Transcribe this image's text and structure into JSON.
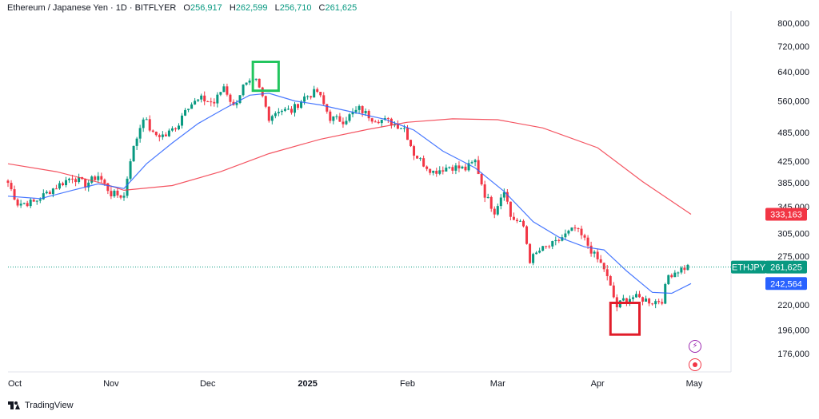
{
  "header": {
    "symbol": "Ethereum / Japanese Yen · 1D · BITFLYER",
    "open_label": "O",
    "open": "256,917",
    "high_label": "H",
    "high": "262,599",
    "low_label": "L",
    "low": "256,710",
    "close_label": "C",
    "close": "261,625"
  },
  "footer": {
    "brand": "TradingView"
  },
  "colors": {
    "up": "#089981",
    "down": "#f23645",
    "ma_fast": "#2962ff",
    "ma_slow": "#f23645",
    "box_high": "#22c55e",
    "box_low": "#e11d2a",
    "last_price": "#089981"
  },
  "icons": {
    "flash": "lightning-icon",
    "record": "target-icon"
  },
  "chart_data": {
    "type": "candlestick",
    "scale": "log",
    "y_ticks": [
      800000,
      720000,
      640000,
      560000,
      485000,
      425000,
      385000,
      345000,
      305000,
      275000,
      220000,
      196000,
      176000
    ],
    "y_tick_labels": [
      "800,000",
      "720,000",
      "640,000",
      "560,000",
      "485,000",
      "425,000",
      "385,000",
      "345,000",
      "305,000",
      "275,000",
      "220,000",
      "196,000",
      "176,000"
    ],
    "x_ticks": [
      "Oct",
      "Nov",
      "Dec",
      "2025",
      "Feb",
      "Mar",
      "Apr",
      "May"
    ],
    "x_tick_dates": [
      "2024-09-30",
      "2024-11-01",
      "2024-12-01",
      "2025-01-01",
      "2025-02-01",
      "2025-03-01",
      "2025-04-01",
      "2025-05-01"
    ],
    "last_price": {
      "label": "ETHJPY",
      "value": 261625,
      "text": "261,625"
    },
    "ma_fast_last": {
      "value": 242564,
      "text": "242,564"
    },
    "ma_slow_last": {
      "value": 333163,
      "text": "333,163"
    },
    "keypoints": [
      [
        "2024-09-30",
        385000
      ],
      [
        "2024-10-03",
        350000
      ],
      [
        "2024-10-08",
        352000
      ],
      [
        "2024-10-14",
        375000
      ],
      [
        "2024-10-20",
        396000
      ],
      [
        "2024-10-24",
        382000
      ],
      [
        "2024-10-28",
        398000
      ],
      [
        "2024-11-01",
        366000
      ],
      [
        "2024-11-05",
        362000
      ],
      [
        "2024-11-07",
        430000
      ],
      [
        "2024-11-11",
        522000
      ],
      [
        "2024-11-14",
        480000
      ],
      [
        "2024-11-18",
        478000
      ],
      [
        "2024-11-22",
        505000
      ],
      [
        "2024-11-24",
        545000
      ],
      [
        "2024-11-29",
        565000
      ],
      [
        "2024-12-03",
        555000
      ],
      [
        "2024-12-06",
        600000
      ],
      [
        "2024-12-09",
        545000
      ],
      [
        "2024-12-12",
        598000
      ],
      [
        "2024-12-16",
        612000
      ],
      [
        "2024-12-18",
        570000
      ],
      [
        "2024-12-20",
        520000
      ],
      [
        "2024-12-23",
        538000
      ],
      [
        "2024-12-27",
        535000
      ],
      [
        "2024-12-31",
        570000
      ],
      [
        "2025-01-04",
        585000
      ],
      [
        "2025-01-08",
        518000
      ],
      [
        "2025-01-12",
        512000
      ],
      [
        "2025-01-17",
        540000
      ],
      [
        "2025-01-21",
        518000
      ],
      [
        "2025-01-26",
        510000
      ],
      [
        "2025-01-31",
        495000
      ],
      [
        "2025-02-03",
        440000
      ],
      [
        "2025-02-06",
        420000
      ],
      [
        "2025-02-09",
        405000
      ],
      [
        "2025-02-14",
        415000
      ],
      [
        "2025-02-19",
        410000
      ],
      [
        "2025-02-22",
        425000
      ],
      [
        "2025-02-25",
        365000
      ],
      [
        "2025-02-28",
        338000
      ],
      [
        "2025-03-03",
        375000
      ],
      [
        "2025-03-05",
        330000
      ],
      [
        "2025-03-09",
        315000
      ],
      [
        "2025-03-11",
        270000
      ],
      [
        "2025-03-14",
        282000
      ],
      [
        "2025-03-19",
        292000
      ],
      [
        "2025-03-21",
        300000
      ],
      [
        "2025-03-25",
        312000
      ],
      [
        "2025-03-28",
        296000
      ],
      [
        "2025-03-31",
        276000
      ],
      [
        "2025-04-03",
        260000
      ],
      [
        "2025-04-07",
        218000
      ],
      [
        "2025-04-09",
        225000
      ],
      [
        "2025-04-12",
        228000
      ],
      [
        "2025-04-15",
        226000
      ],
      [
        "2025-04-18",
        223000
      ],
      [
        "2025-04-21",
        225000
      ],
      [
        "2025-04-23",
        252000
      ],
      [
        "2025-04-26",
        258000
      ],
      [
        "2025-04-29",
        262000
      ]
    ],
    "ma_fast": [
      [
        "2024-09-30",
        362000
      ],
      [
        "2024-10-10",
        358000
      ],
      [
        "2024-10-20",
        372000
      ],
      [
        "2024-10-28",
        383000
      ],
      [
        "2024-11-05",
        375000
      ],
      [
        "2024-11-12",
        420000
      ],
      [
        "2024-11-20",
        462000
      ],
      [
        "2024-11-28",
        505000
      ],
      [
        "2024-12-06",
        540000
      ],
      [
        "2024-12-14",
        575000
      ],
      [
        "2024-12-20",
        580000
      ],
      [
        "2024-12-28",
        560000
      ],
      [
        "2025-01-05",
        550000
      ],
      [
        "2025-01-15",
        532000
      ],
      [
        "2025-01-25",
        515000
      ],
      [
        "2025-02-03",
        490000
      ],
      [
        "2025-02-12",
        445000
      ],
      [
        "2025-02-22",
        412000
      ],
      [
        "2025-03-03",
        370000
      ],
      [
        "2025-03-12",
        322000
      ],
      [
        "2025-03-20",
        300000
      ],
      [
        "2025-03-28",
        287000
      ],
      [
        "2025-04-03",
        283000
      ],
      [
        "2025-04-10",
        257000
      ],
      [
        "2025-04-18",
        233000
      ],
      [
        "2025-04-24",
        232000
      ],
      [
        "2025-04-30",
        242564
      ]
    ],
    "ma_slow": [
      [
        "2024-09-30",
        420000
      ],
      [
        "2024-10-15",
        405000
      ],
      [
        "2024-10-30",
        383000
      ],
      [
        "2024-11-05",
        372000
      ],
      [
        "2024-11-20",
        380000
      ],
      [
        "2024-12-05",
        405000
      ],
      [
        "2024-12-20",
        440000
      ],
      [
        "2025-01-05",
        470000
      ],
      [
        "2025-01-20",
        492000
      ],
      [
        "2025-02-01",
        508000
      ],
      [
        "2025-02-15",
        516000
      ],
      [
        "2025-03-01",
        514000
      ],
      [
        "2025-03-15",
        495000
      ],
      [
        "2025-04-01",
        452000
      ],
      [
        "2025-04-15",
        387000
      ],
      [
        "2025-04-30",
        333163
      ]
    ],
    "boxes": [
      {
        "name": "high-marker",
        "from": "2024-12-15",
        "to": "2024-12-23",
        "top": 670000,
        "bottom": 587000
      },
      {
        "name": "low-marker",
        "from": "2025-04-05",
        "to": "2025-04-14",
        "top": 222000,
        "bottom": 192000
      }
    ]
  }
}
